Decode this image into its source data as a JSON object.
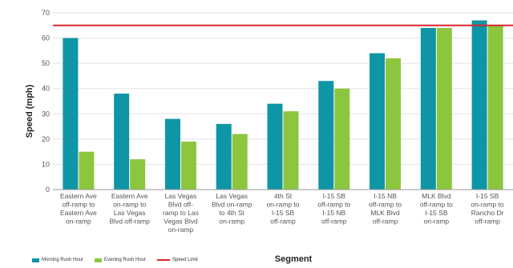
{
  "chart_data": {
    "type": "bar",
    "title": "",
    "xlabel": "Segment",
    "ylabel": "Speed (mph)",
    "ylim": [
      0,
      70
    ],
    "yticks": [
      0,
      10,
      20,
      30,
      40,
      50,
      60,
      70
    ],
    "grid": "horizontal",
    "categories": [
      [
        "Eastern Ave",
        "off-ramp to",
        "Eastern Ave",
        "on-ramp"
      ],
      [
        "Eastern Ave",
        "on-ramp to",
        "Las Vegas",
        "Blvd off-ramp"
      ],
      [
        "Las Vegas",
        "Blvd off-",
        "ramp to Las",
        "Vegas Blvd",
        "on-ramp"
      ],
      [
        "Las Vegas",
        "Blvd on-ramp",
        "to 4th St",
        "on-ramp"
      ],
      [
        "4th St",
        "on-ramp to",
        "I-15 SB",
        "off-ramp"
      ],
      [
        "I-15 SB",
        "off-ramp to",
        "I-15 NB",
        "off-ramp"
      ],
      [
        "I-15 NB",
        "off-ramp to",
        "MLK Blvd",
        "off-ramp"
      ],
      [
        "MLK Blvd",
        "off-ramp to",
        "I-15 SB",
        "on-ramp"
      ],
      [
        "I-15 SB",
        "on-ramp to",
        "Rancho Dr",
        "off-ramp"
      ]
    ],
    "series": [
      {
        "name": "Morning Rush Hour",
        "color": "#0e95a6",
        "values": [
          60,
          38,
          28,
          26,
          34,
          43,
          54,
          64,
          67
        ]
      },
      {
        "name": "Evening Rush Hour",
        "color": "#8cc63f",
        "values": [
          15,
          12,
          19,
          22,
          31,
          40,
          52,
          64,
          65
        ]
      }
    ],
    "reference_line": {
      "name": "Speed Limit",
      "value": 65,
      "color": "#d7262e"
    },
    "legend_position": "bottom-left"
  }
}
